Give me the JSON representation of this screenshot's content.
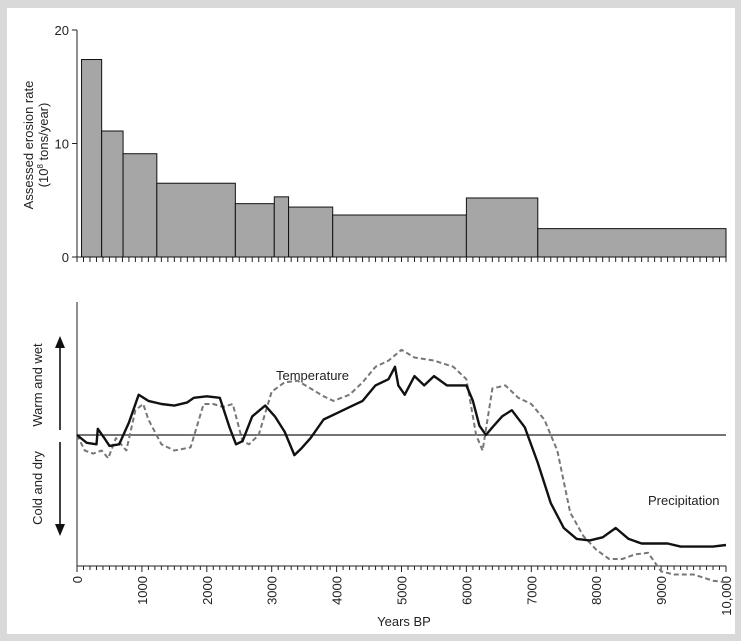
{
  "chart_data": [
    {
      "type": "bar",
      "ylabel_line1": "Assessed erosion rate",
      "ylabel_line2_pre": "(10",
      "ylabel_line2_sup": "8",
      "ylabel_line2_post": " tons/year)",
      "ylim": [
        0,
        20
      ],
      "yticks": [
        0,
        10,
        20
      ],
      "xlim": [
        0,
        10000
      ],
      "bars": [
        {
          "start": 70,
          "end": 380,
          "value": 17.4
        },
        {
          "start": 380,
          "end": 710,
          "value": 11.1
        },
        {
          "start": 710,
          "end": 1230,
          "value": 9.1
        },
        {
          "start": 1230,
          "end": 2440,
          "value": 6.5
        },
        {
          "start": 2440,
          "end": 3040,
          "value": 4.7
        },
        {
          "start": 3040,
          "end": 3260,
          "value": 5.3
        },
        {
          "start": 3260,
          "end": 3940,
          "value": 4.4
        },
        {
          "start": 3940,
          "end": 6000,
          "value": 3.7
        },
        {
          "start": 6000,
          "end": 7100,
          "value": 5.2
        },
        {
          "start": 7100,
          "end": 10000,
          "value": 2.5
        }
      ],
      "bar_color": "#a6a6a6"
    },
    {
      "type": "line",
      "xlabel": "Years BP",
      "xlim": [
        0,
        10000
      ],
      "xticks": [
        0,
        1000,
        2000,
        3000,
        4000,
        5000,
        6000,
        7000,
        8000,
        9000,
        10000
      ],
      "xtick_labels": [
        "0",
        "1000",
        "2000",
        "3000",
        "4000",
        "5000",
        "6000",
        "7000",
        "8000",
        "9000",
        "10,000"
      ],
      "ylim": [
        -1,
        1
      ],
      "warm_label": "Warm and wet",
      "cold_label": "Cold and dry",
      "series": [
        {
          "name": "Precipitation",
          "style": "solid",
          "color": "#111111",
          "x": [
            0,
            150,
            300,
            320,
            420,
            500,
            650,
            800,
            950,
            1100,
            1300,
            1500,
            1700,
            1800,
            2000,
            2200,
            2350,
            2450,
            2550,
            2700,
            2900,
            3050,
            3200,
            3350,
            3450,
            3600,
            3800,
            4000,
            4200,
            4400,
            4600,
            4800,
            4900,
            4950,
            5050,
            5200,
            5350,
            5500,
            5700,
            5900,
            6000,
            6100,
            6200,
            6300,
            6400,
            6550,
            6700,
            6900,
            7100,
            7300,
            7500,
            7700,
            7900,
            8100,
            8300,
            8500,
            8700,
            8900,
            9100,
            9300,
            9500,
            9800,
            10000
          ],
          "y": [
            0.0,
            -0.05,
            -0.06,
            0.04,
            -0.02,
            -0.07,
            -0.06,
            0.08,
            0.26,
            0.22,
            0.2,
            0.19,
            0.21,
            0.24,
            0.25,
            0.24,
            0.05,
            -0.06,
            -0.04,
            0.12,
            0.19,
            0.12,
            0.02,
            -0.13,
            -0.09,
            -0.02,
            0.1,
            0.14,
            0.18,
            0.22,
            0.32,
            0.36,
            0.44,
            0.32,
            0.26,
            0.38,
            0.32,
            0.38,
            0.32,
            0.32,
            0.32,
            0.22,
            0.06,
            0.0,
            0.05,
            0.12,
            0.16,
            0.05,
            -0.18,
            -0.44,
            -0.6,
            -0.67,
            -0.68,
            -0.66,
            -0.6,
            -0.67,
            -0.7,
            -0.7,
            -0.7,
            -0.72,
            -0.72,
            -0.72,
            -0.71
          ]
        },
        {
          "name": "Temperature",
          "style": "dashed",
          "color": "#777777",
          "x": [
            0,
            120,
            250,
            380,
            480,
            600,
            760,
            900,
            1020,
            1100,
            1300,
            1500,
            1750,
            1950,
            2100,
            2250,
            2400,
            2550,
            2650,
            2800,
            3000,
            3200,
            3400,
            3600,
            3800,
            3950,
            4200,
            4400,
            4600,
            4800,
            5000,
            5200,
            5500,
            5800,
            6000,
            6150,
            6250,
            6400,
            6600,
            6800,
            7000,
            7200,
            7400,
            7600,
            7800,
            8000,
            8200,
            8400,
            8600,
            8800,
            9000,
            9200,
            9500,
            9800,
            10000
          ],
          "y": [
            0.0,
            -0.1,
            -0.12,
            -0.1,
            -0.15,
            -0.02,
            -0.1,
            0.16,
            0.2,
            0.1,
            -0.06,
            -0.1,
            -0.08,
            0.2,
            0.2,
            0.18,
            0.2,
            -0.04,
            -0.06,
            0.0,
            0.28,
            0.34,
            0.35,
            0.3,
            0.25,
            0.22,
            0.26,
            0.34,
            0.44,
            0.48,
            0.55,
            0.5,
            0.48,
            0.44,
            0.36,
            0.0,
            -0.1,
            0.3,
            0.32,
            0.24,
            0.2,
            0.1,
            -0.1,
            -0.5,
            -0.65,
            -0.74,
            -0.8,
            -0.8,
            -0.77,
            -0.76,
            -0.88,
            -0.9,
            -0.9,
            -0.94,
            -0.95
          ]
        }
      ]
    }
  ]
}
